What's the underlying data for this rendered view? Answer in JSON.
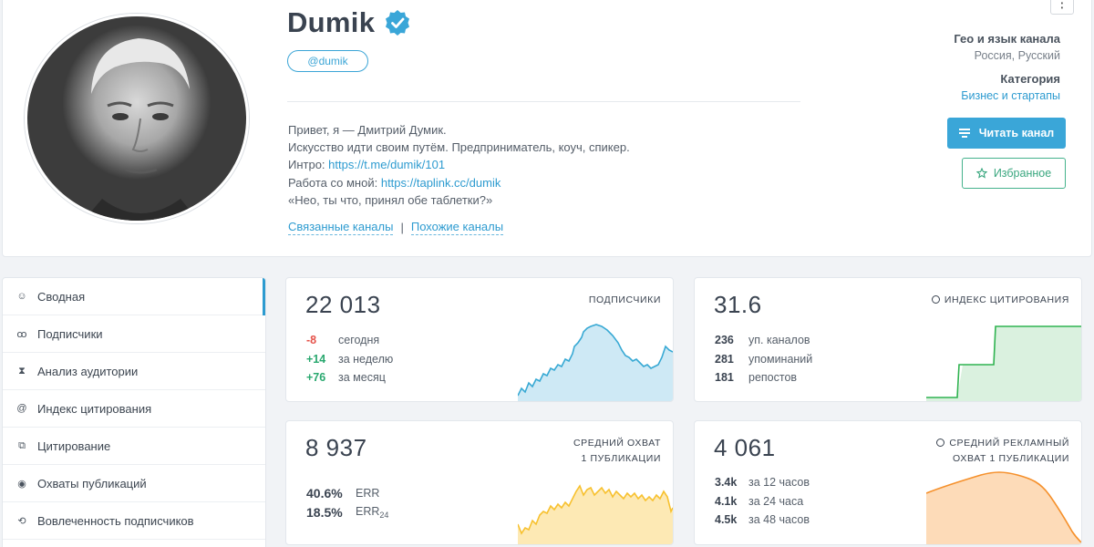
{
  "channel": {
    "title": "Dumik",
    "handle": "@dumik",
    "description": [
      "Привет, я — Дмитрий Думик.",
      "Искусство идти своим путём. Предприниматель, коуч, спикер."
    ],
    "intro_label": "Интро: ",
    "intro_link": "https://t.me/dumik/101",
    "work_label": "Работа со мной: ",
    "work_link": "https://taplink.cc/dumik",
    "quote": "«Нео, ты что, принял обе таблетки?»",
    "related_link": "Связанные каналы",
    "similar_link": "Похожие каналы",
    "separator": "|"
  },
  "meta": {
    "geo_label": "Гео и язык канала",
    "geo_value": "Россия, Русский",
    "category_label": "Категория",
    "category_value": "Бизнес и стартапы",
    "read_button": "Читать канал",
    "favorite_button": "Избранное",
    "more_icon": "⋮"
  },
  "sidebar": {
    "items": [
      {
        "label": "Сводная",
        "icon": "☺"
      },
      {
        "label": "Подписчики",
        "icon": "ꝏ"
      },
      {
        "label": "Анализ аудитории",
        "icon": "⧗"
      },
      {
        "label": "Индекс цитирования",
        "icon": "@"
      },
      {
        "label": "Цитирование",
        "icon": "⧉"
      },
      {
        "label": "Охваты публикаций",
        "icon": "◉"
      },
      {
        "label": "Вовлеченность подписчиков",
        "icon": "⟲"
      }
    ]
  },
  "cards": {
    "subscribers": {
      "value": "22 013",
      "label": "ПОДПИСЧИКИ",
      "rows": [
        {
          "num": "-8",
          "text": "сегодня"
        },
        {
          "num": "+14",
          "text": "за неделю"
        },
        {
          "num": "+76",
          "text": "за месяц"
        }
      ]
    },
    "citation": {
      "value": "31.6",
      "label": "ИНДЕКС ЦИТИРОВАНИЯ",
      "rows": [
        {
          "num": "236",
          "text": "уп. каналов"
        },
        {
          "num": "281",
          "text": "упоминаний"
        },
        {
          "num": "181",
          "text": "репостов"
        }
      ]
    },
    "reach": {
      "value": "8 937",
      "label_line1": "СРЕДНИЙ ОХВАТ",
      "label_line2": "1 ПУБЛИКАЦИИ",
      "rows": [
        {
          "num": "40.6%",
          "text": "ERR"
        },
        {
          "num": "18.5%",
          "text": "ERR",
          "sub": "24"
        }
      ]
    },
    "ad_reach": {
      "value": "4 061",
      "label_line1": "СРЕДНИЙ РЕКЛАМНЫЙ",
      "label_line2": "ОХВАТ 1 ПУБЛИКАЦИИ",
      "rows": [
        {
          "num": "3.4k",
          "text": "за 12 часов"
        },
        {
          "num": "4.1k",
          "text": "за 24 часа"
        },
        {
          "num": "4.5k",
          "text": "за 48 часов"
        }
      ]
    }
  },
  "colors": {
    "accent": "#3aa6d8",
    "favorite": "#3aa77f",
    "negative": "#e5534b",
    "positive": "#29a86f",
    "spark_blue": "#38a9d4",
    "spark_green": "#2fb350",
    "spark_yellow": "#f7c12f",
    "spark_orange": "#f5902b"
  }
}
